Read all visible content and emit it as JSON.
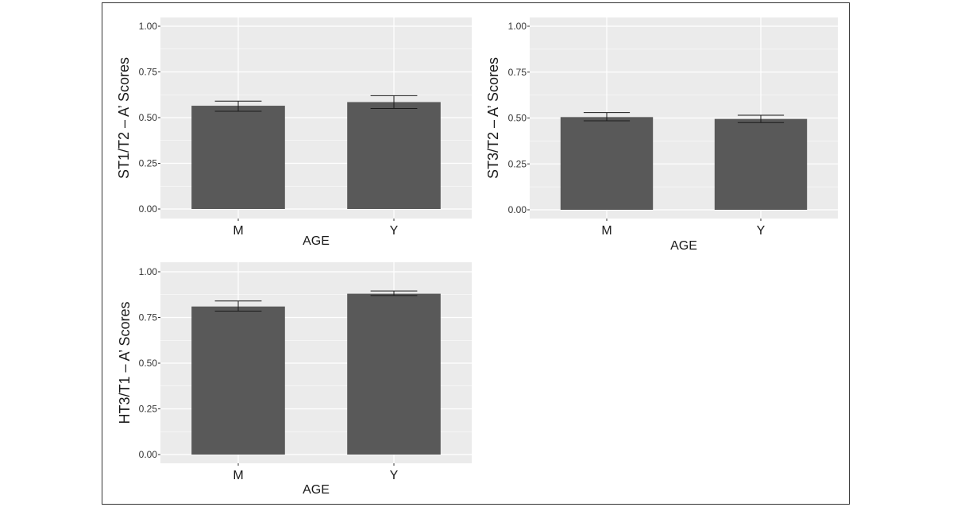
{
  "chart_data": [
    {
      "type": "bar",
      "categories": [
        "M",
        "Y"
      ],
      "values": [
        0.565,
        0.585
      ],
      "error_low": [
        0.535,
        0.55
      ],
      "error_high": [
        0.59,
        0.62
      ],
      "xlabel": "AGE",
      "ylabel": "ST1/T2 – A’ Scores",
      "ylim": [
        0,
        1.05
      ],
      "yticks": [
        "0.00",
        "0.25",
        "0.50",
        "0.75",
        "1.00"
      ],
      "ytick_values": [
        0,
        0.25,
        0.5,
        0.75,
        1.0
      ],
      "grid": true
    },
    {
      "type": "bar",
      "categories": [
        "M",
        "Y"
      ],
      "values": [
        0.505,
        0.495
      ],
      "error_low": [
        0.485,
        0.475
      ],
      "error_high": [
        0.53,
        0.515
      ],
      "xlabel": "AGE",
      "ylabel": "ST3/T2 – A’ Scores",
      "ylim": [
        0,
        1.05
      ],
      "yticks": [
        "0.00",
        "0.25",
        "0.50",
        "0.75",
        "1.00"
      ],
      "ytick_values": [
        0,
        0.25,
        0.5,
        0.75,
        1.0
      ],
      "grid": true
    },
    {
      "type": "bar",
      "categories": [
        "M",
        "Y"
      ],
      "values": [
        0.81,
        0.88
      ],
      "error_low": [
        0.785,
        0.87
      ],
      "error_high": [
        0.84,
        0.895
      ],
      "xlabel": "AGE",
      "ylabel": "HT3/T1 – A’ Scores",
      "ylim": [
        0,
        1.05
      ],
      "yticks": [
        "0.00",
        "0.25",
        "0.50",
        "0.75",
        "1.00"
      ],
      "ytick_values": [
        0,
        0.25,
        0.5,
        0.75,
        1.0
      ],
      "grid": true
    }
  ],
  "colors": {
    "panel_background": "#ebebeb",
    "gridline": "#ffffff",
    "bar_fill": "#595959",
    "error_bar": "#1a1a1a",
    "frame_border": "#333333"
  }
}
